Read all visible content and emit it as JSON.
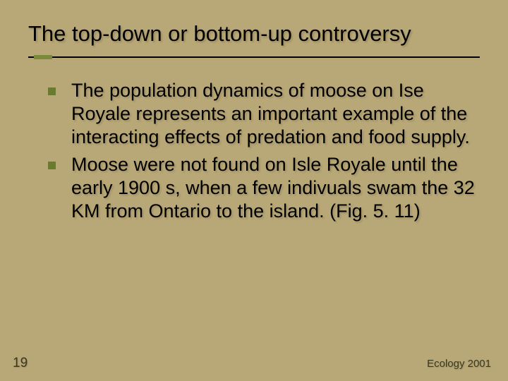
{
  "slide": {
    "background_color": "#b8a878",
    "title": "The top-down or bottom-up controversy",
    "title_color": "#000000",
    "title_fontsize": 31,
    "divider": {
      "line_color": "#000000",
      "accent_color": "#7a8a3a"
    },
    "bullets": [
      {
        "marker_color": "#6a7a2e",
        "text": "The population dynamics of moose on Ise Royale represents an important example of the interacting effects of predation and food supply."
      },
      {
        "marker_color": "#6a7a2e",
        "text": "Moose were not found on Isle Royale until the early 1900 s, when a few indivuals swam the 32 KM from Ontario to the island. (Fig. 5. 11)"
      }
    ],
    "body_fontsize": 27,
    "body_color": "#000000",
    "page_number": "19",
    "page_number_color": "#3a3a20",
    "footer": "Ecology 2001",
    "footer_color": "#3a3a20"
  }
}
